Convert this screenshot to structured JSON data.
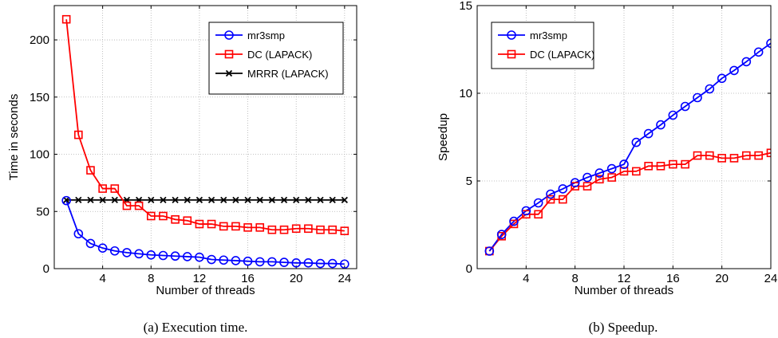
{
  "chart_data": [
    {
      "type": "line",
      "xlabel": "Number of threads",
      "ylabel": "Time in seconds",
      "caption": "(a)  Execution time.",
      "xlim": [
        0,
        25
      ],
      "ylim": [
        0,
        230
      ],
      "xticks": [
        4,
        8,
        12,
        16,
        20,
        24
      ],
      "yticks": [
        0,
        50,
        100,
        150,
        200
      ],
      "grid": true,
      "legend_position": "top-right",
      "x": [
        1,
        2,
        3,
        4,
        5,
        6,
        7,
        8,
        9,
        10,
        11,
        12,
        13,
        14,
        15,
        16,
        17,
        18,
        19,
        20,
        21,
        22,
        23,
        24
      ],
      "series": [
        {
          "name": "mr3smp",
          "color": "#0000ff",
          "marker": "circle",
          "values": [
            59.5,
            30.5,
            22,
            18,
            15.5,
            14,
            13,
            12,
            11.5,
            11,
            10.5,
            10,
            8,
            7.5,
            7,
            6.5,
            6,
            6,
            5.5,
            5,
            5,
            4.5,
            4.5,
            4
          ]
        },
        {
          "name": "DC (LAPACK)",
          "color": "#ff0000",
          "marker": "square",
          "values": [
            218,
            117,
            86,
            70,
            70,
            55,
            55,
            46,
            46,
            43,
            42,
            39,
            39,
            37,
            37,
            36,
            36,
            34,
            34,
            35,
            35,
            34,
            34,
            33
          ]
        },
        {
          "name": "MRRR (LAPACK)",
          "color": "#000000",
          "marker": "x",
          "values": [
            60,
            60,
            60,
            60,
            60,
            60,
            60,
            60,
            60,
            60,
            60,
            60,
            60,
            60,
            60,
            60,
            60,
            60,
            60,
            60,
            60,
            60,
            60,
            60
          ]
        }
      ]
    },
    {
      "type": "line",
      "xlabel": "Number of threads",
      "ylabel": "Speedup",
      "caption": "(b)  Speedup.",
      "xlim": [
        0,
        24
      ],
      "ylim": [
        0,
        15
      ],
      "xticks": [
        4,
        8,
        12,
        16,
        20,
        24
      ],
      "yticks": [
        0,
        5,
        10,
        15
      ],
      "grid": true,
      "legend_position": "top-left",
      "x": [
        1,
        2,
        3,
        4,
        5,
        6,
        7,
        8,
        9,
        10,
        11,
        12,
        13,
        14,
        15,
        16,
        17,
        18,
        19,
        20,
        21,
        22,
        23,
        24
      ],
      "series": [
        {
          "name": "mr3smp",
          "color": "#0000ff",
          "marker": "circle",
          "values": [
            1,
            1.95,
            2.7,
            3.3,
            3.75,
            4.25,
            4.55,
            4.9,
            5.2,
            5.45,
            5.7,
            5.95,
            7.2,
            7.7,
            8.2,
            8.75,
            9.25,
            9.75,
            10.25,
            10.85,
            11.3,
            11.8,
            12.35,
            12.85
          ]
        },
        {
          "name": "DC (LAPACK)",
          "color": "#ff0000",
          "marker": "square",
          "values": [
            1,
            1.85,
            2.55,
            3.1,
            3.1,
            3.95,
            3.95,
            4.7,
            4.7,
            5.1,
            5.2,
            5.55,
            5.55,
            5.85,
            5.85,
            5.95,
            5.95,
            6.45,
            6.45,
            6.3,
            6.3,
            6.45,
            6.45,
            6.6
          ]
        }
      ]
    }
  ]
}
